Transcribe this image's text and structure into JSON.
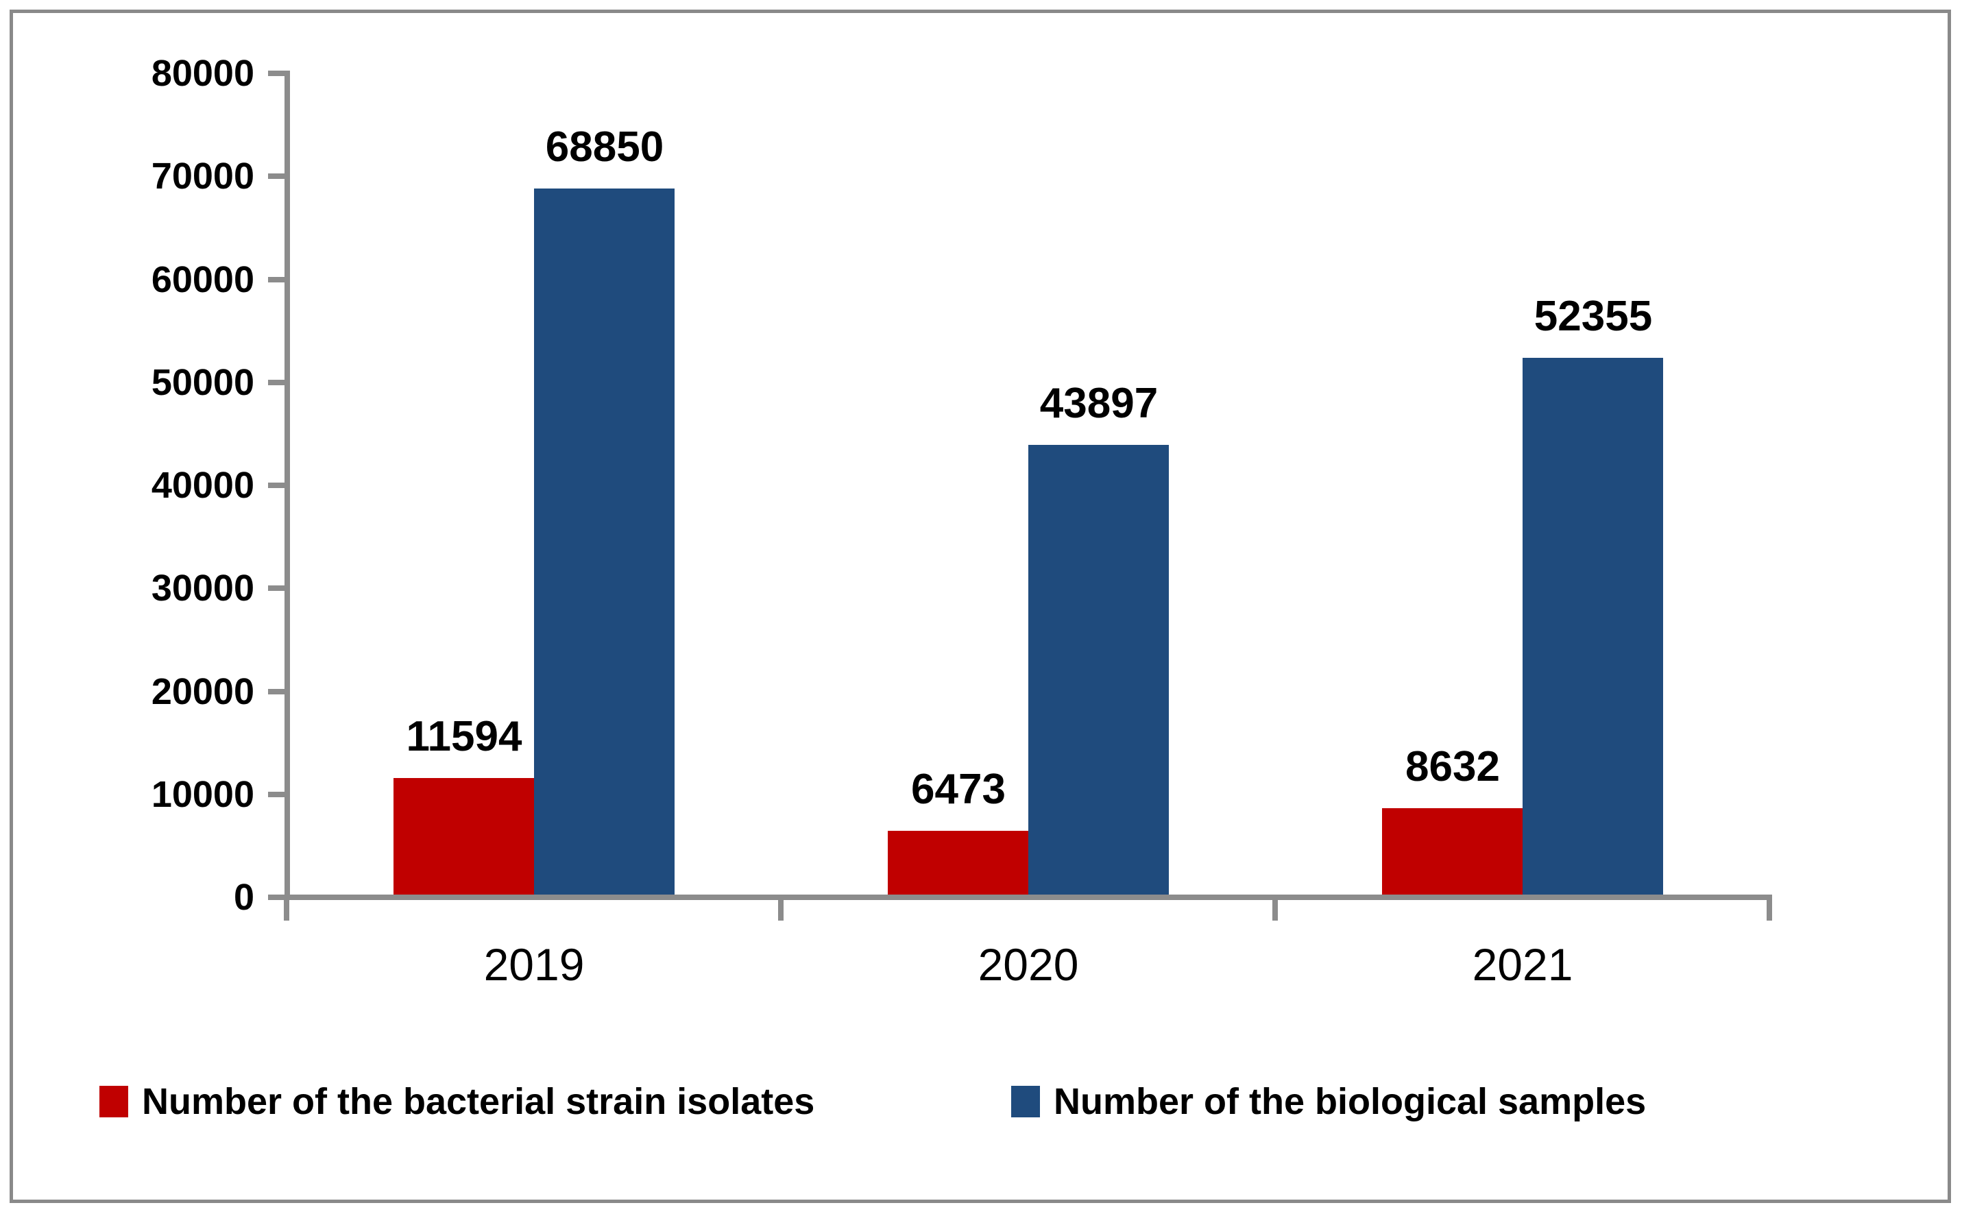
{
  "chart_data": {
    "type": "bar",
    "categories": [
      "2019",
      "2020",
      "2021"
    ],
    "series": [
      {
        "name": "Number of the bacterial strain isolates",
        "color": "#C00000",
        "values": [
          11594,
          6473,
          8632
        ]
      },
      {
        "name": "Number of the biological samples",
        "color": "#1F4B7D",
        "values": [
          68850,
          43897,
          52355
        ]
      }
    ],
    "title": "",
    "xlabel": "",
    "ylabel": "",
    "ylim": [
      0,
      80000
    ],
    "y_tick_step": 10000,
    "y_tick_labels": [
      "0",
      "10000",
      "20000",
      "30000",
      "40000",
      "50000",
      "60000",
      "70000",
      "80000"
    ],
    "grid": false,
    "legend_position": "bottom",
    "data_labels": true
  },
  "colors": {
    "axis": "#8C8C8C",
    "frame_border": "#8A8A8A",
    "background": "#FFFFFF",
    "text": "#000000"
  },
  "legend": {
    "items": [
      {
        "label": "Number of the bacterial strain isolates",
        "color": "#C00000"
      },
      {
        "label": "Number of the biological samples",
        "color": "#1F4B7D"
      }
    ]
  }
}
